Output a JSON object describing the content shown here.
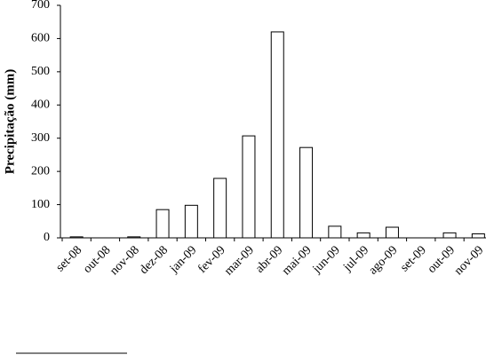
{
  "chart_data": {
    "type": "bar",
    "y_label": "Precipitação (mm)",
    "categories": [
      "set-08",
      "out-08",
      "nov-08",
      "dez-08",
      "jan-09",
      "fev-09",
      "mar-09",
      "abr-09",
      "mai-09",
      "jun-09",
      "jul-09",
      "ago-09",
      "set-09",
      "out-09",
      "nov-09"
    ],
    "values": [
      3,
      0,
      3,
      85,
      98,
      179,
      307,
      620,
      272,
      35,
      15,
      32,
      0,
      15,
      12
    ],
    "color": "#ffffff",
    "ylim": [
      0,
      700
    ],
    "yticks": [
      0,
      100,
      200,
      300,
      400,
      500,
      600,
      700
    ]
  }
}
